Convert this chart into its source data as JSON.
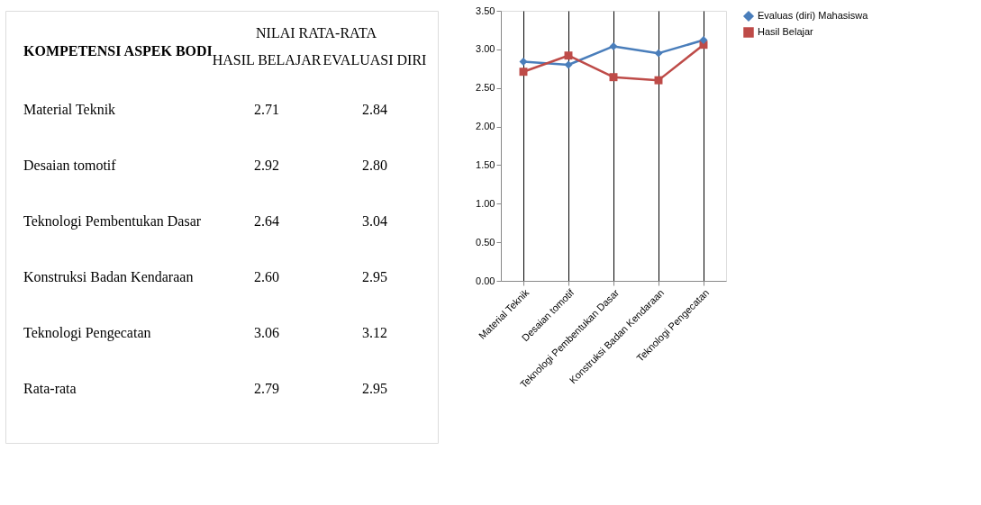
{
  "chart_data": [
    {
      "type": "other",
      "annotations": [
        "KOMPETENSI ASPEK BODI",
        "NILAI RATA-RATA",
        "HASIL BELAJAR",
        "EVALUASI DIRI",
        "Material Teknik",
        "2.71",
        "2.84",
        "Desaian tomotif",
        "2.92",
        "2.80",
        "Teknologi Pembentukan Dasar",
        "2.64",
        "3.04",
        "Konstruksi Badan Kendaraan",
        "2.60",
        "2.95",
        "Teknologi Pengecatan",
        "3.06",
        "3.12",
        "Rata-rata",
        "2.79",
        "2.95"
      ]
    },
    {
      "type": "line",
      "categories": [
        "Material Teknik",
        "Desaian tomotif",
        "Teknologi Pembentukan Dasar",
        "Konstruksi Badan Kendaraan",
        "Teknologi Pengecatan"
      ],
      "series": [
        {
          "name": "Evaluas (diri) Mahasiswa",
          "color": "#4a7ebb",
          "marker": "diamond",
          "values": [
            2.84,
            2.8,
            3.04,
            2.95,
            3.12
          ]
        },
        {
          "name": "Hasil Belajar",
          "color": "#be4b48",
          "marker": "square",
          "values": [
            2.71,
            2.92,
            2.64,
            2.6,
            3.06
          ]
        }
      ],
      "ylim": [
        0,
        3.5
      ],
      "yticks": [
        {
          "value": 0,
          "label": "0.00"
        },
        {
          "value": 0.5,
          "label": "0.50"
        },
        {
          "value": 1,
          "label": "1.00"
        },
        {
          "value": 1.5,
          "label": "1.50"
        },
        {
          "value": 2,
          "label": "2.00"
        },
        {
          "value": 2.5,
          "label": "2.50"
        },
        {
          "value": 3,
          "label": "3.00"
        },
        {
          "value": 3.5,
          "label": "3.50"
        }
      ],
      "grid": "x",
      "legend": "right",
      "line_style": "solid"
    }
  ]
}
